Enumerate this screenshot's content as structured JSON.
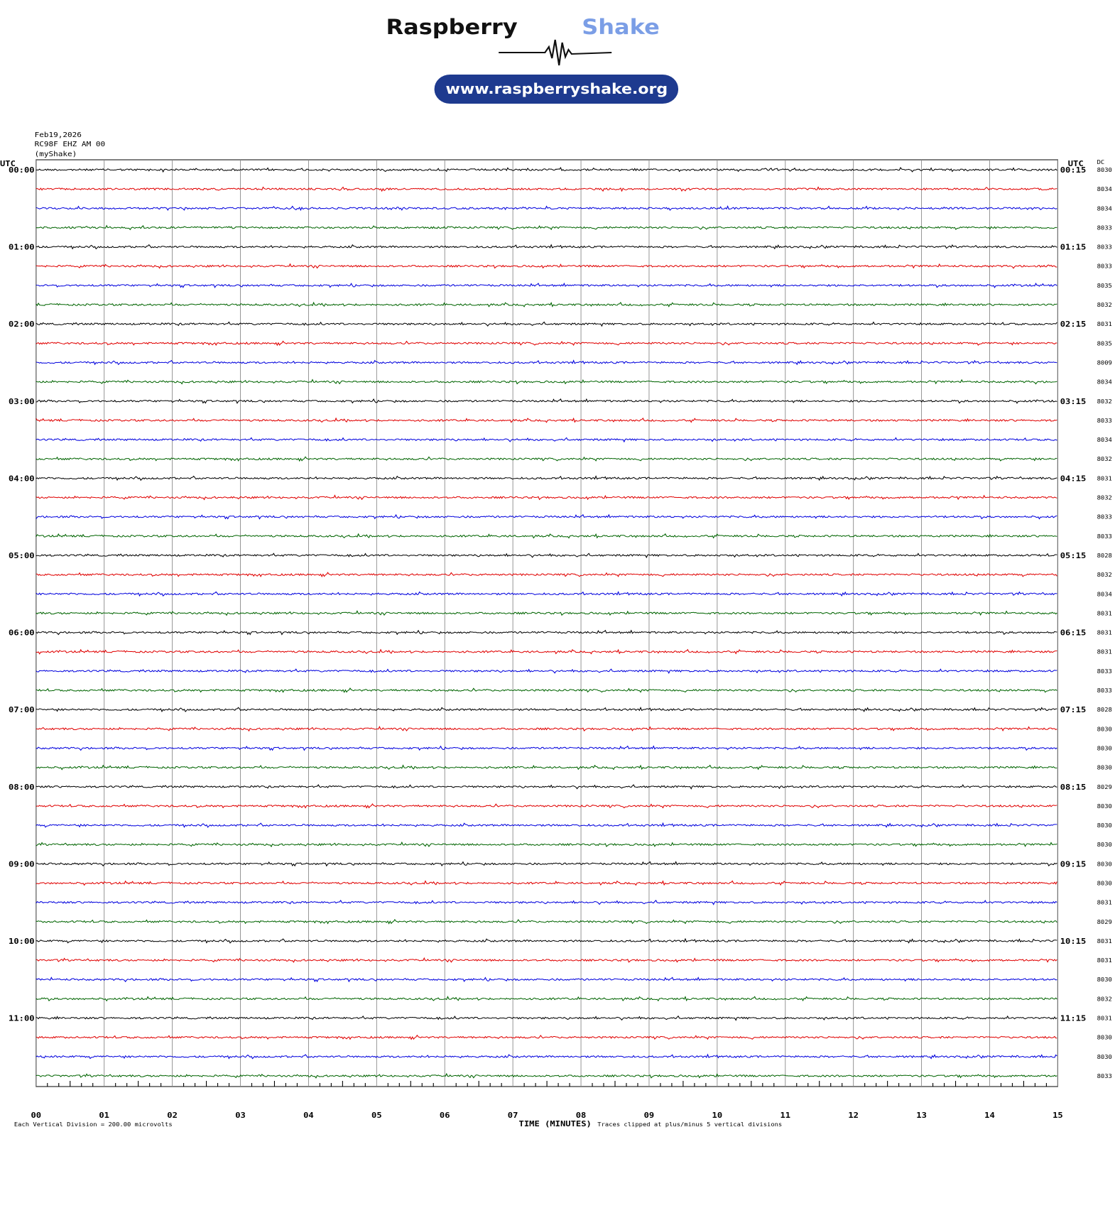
{
  "logo": {
    "brand": "Raspberry",
    "brand_accent": "Shake",
    "url": "www.raspberryshake.org"
  },
  "header": {
    "date": "Feb19,2026",
    "station": "RC98F EHZ AM 00",
    "network": "(myShake)"
  },
  "left_axis": {
    "title": "UTC",
    "labels": [
      "00:00",
      "01:00",
      "02:00",
      "03:00",
      "04:00",
      "05:00",
      "06:00",
      "07:00",
      "08:00",
      "09:00",
      "10:00",
      "11:00"
    ]
  },
  "right_axis": {
    "title": "UTC",
    "labels": [
      "00:15",
      "01:15",
      "02:15",
      "03:15",
      "04:15",
      "05:15",
      "06:15",
      "07:15",
      "08:15",
      "09:15",
      "10:15",
      "11:15"
    ]
  },
  "dc": {
    "title": "DC",
    "values": [
      "8030",
      "8034",
      "8034",
      "8033",
      "8033",
      "8033",
      "8035",
      "8032",
      "8031",
      "8035",
      "8009",
      "8034",
      "8032",
      "8033",
      "8034",
      "8032",
      "8031",
      "8032",
      "8033",
      "8033",
      "8028",
      "8032",
      "8034",
      "8031",
      "8031",
      "8031",
      "8033",
      "8033",
      "8028",
      "8030",
      "8030",
      "8030",
      "8029",
      "8030",
      "8030",
      "8030",
      "8030",
      "8030",
      "8031",
      "8029",
      "8031",
      "8031",
      "8030",
      "8032",
      "8031",
      "8030",
      "8030",
      "8033"
    ]
  },
  "x_axis": {
    "title": "TIME (MINUTES)",
    "ticks": [
      "00",
      "01",
      "02",
      "03",
      "04",
      "05",
      "06",
      "07",
      "08",
      "09",
      "10",
      "11",
      "12",
      "13",
      "14",
      "15"
    ]
  },
  "footer": {
    "scale": "Each Vertical Division =  200.00 microvolts",
    "clip": "Traces clipped at plus/minus 5 vertical divisions"
  },
  "trace_colors": [
    "#000000",
    "#e00000",
    "#0000dd",
    "#006400"
  ]
}
